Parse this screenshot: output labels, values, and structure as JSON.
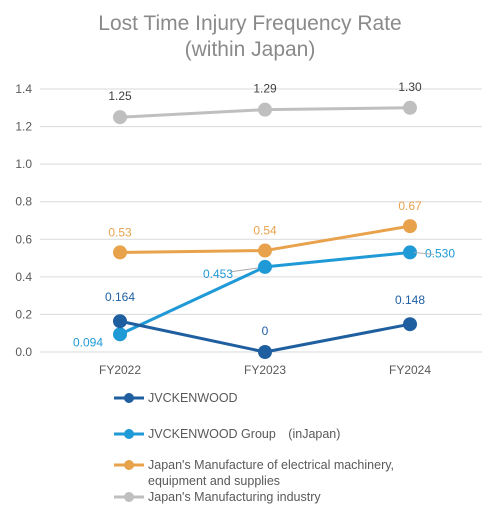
{
  "chart_data": {
    "type": "line",
    "title_line1": "Lost Time Injury Frequency Rate",
    "title_line2": "(within Japan)",
    "categories": [
      "FY2022",
      "FY2023",
      "FY2024"
    ],
    "ylim": [
      0,
      1.4
    ],
    "yticks": [
      "0.0",
      "0.2",
      "0.4",
      "0.6",
      "0.8",
      "1.0",
      "1.2",
      "1.4"
    ],
    "grid": true,
    "legend_position": "bottom",
    "series": [
      {
        "name": "JVCKENWOOD",
        "color": "#1f5fa0",
        "values": [
          0.164,
          0,
          0.148
        ],
        "labels": [
          "0.164",
          "0",
          "0.148"
        ]
      },
      {
        "name": "JVCKENWOOD Group　(inJapan)",
        "color": "#1f9ad6",
        "values": [
          0.094,
          0.453,
          0.53
        ],
        "labels": [
          "0.094",
          "0.453",
          "0.530"
        ]
      },
      {
        "name": "Japan's Manufacture of electrical machinery, equipment and supplies",
        "legend_lines": [
          "Japan's Manufacture of electrical machinery,",
          "equipment and supplies"
        ],
        "color": "#e8a24c",
        "values": [
          0.53,
          0.54,
          0.67
        ],
        "labels": [
          "0.53",
          "0.54",
          "0.67"
        ]
      },
      {
        "name": "Japan's Manufacturing industry",
        "color": "#bfbfbf",
        "values": [
          1.25,
          1.29,
          1.3
        ],
        "labels": [
          "1.25",
          "1.29",
          "1.30"
        ]
      }
    ]
  }
}
